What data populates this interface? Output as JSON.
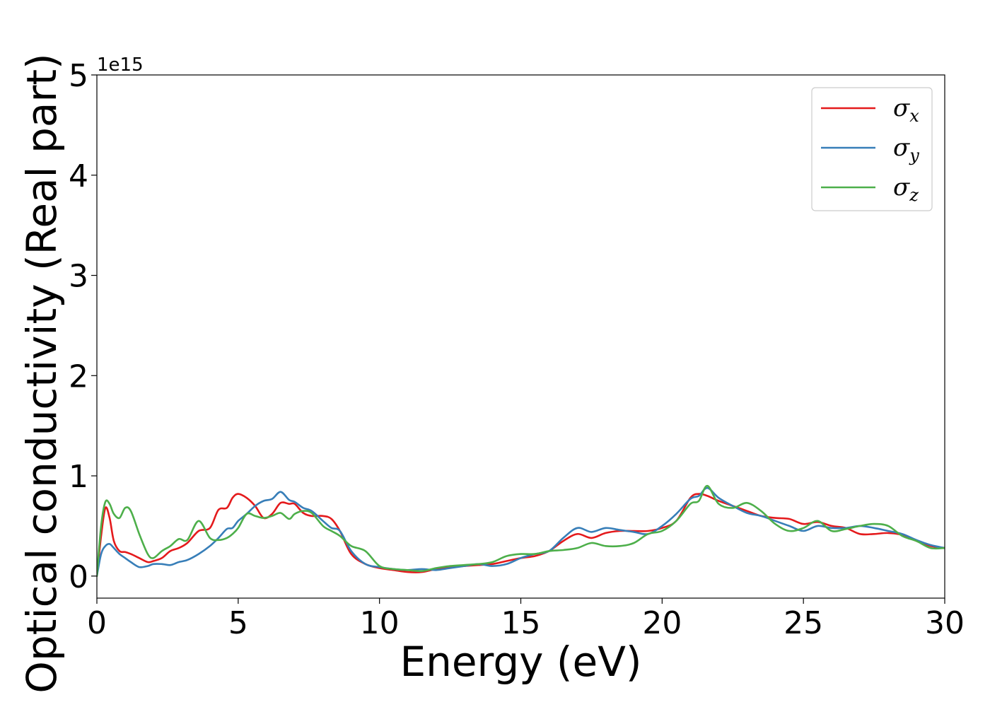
{
  "chart_data": {
    "type": "line",
    "title": "",
    "xlabel": "Energy (eV)",
    "ylabel": "Optical conductivity (Real part)",
    "y_offset_label": "1e15",
    "y_scale_factor": 1000000000000000.0,
    "xlim": [
      0,
      30
    ],
    "ylim": [
      -0.22,
      5.0
    ],
    "x_ticks": [
      0,
      5,
      10,
      15,
      20,
      25,
      30
    ],
    "y_ticks": [
      0,
      1,
      2,
      3,
      4,
      5
    ],
    "grid": false,
    "legend": "top-right",
    "series": [
      {
        "symbol": "σ",
        "subscript": "x",
        "color": "#e41a1c",
        "x": [
          0,
          0.15,
          0.3,
          0.45,
          0.6,
          0.8,
          1.0,
          1.2,
          1.5,
          1.8,
          2.0,
          2.3,
          2.6,
          2.9,
          3.2,
          3.6,
          4.0,
          4.3,
          4.6,
          4.8,
          5.0,
          5.3,
          5.6,
          5.9,
          6.2,
          6.5,
          6.8,
          7.0,
          7.3,
          7.6,
          8.0,
          8.3,
          8.6,
          9.0,
          9.5,
          10.0,
          10.5,
          11.0,
          11.5,
          12.0,
          12.5,
          13.0,
          13.5,
          14.0,
          14.5,
          15.0,
          15.5,
          16.0,
          16.5,
          17.0,
          17.5,
          18.0,
          18.5,
          19.0,
          19.5,
          20.0,
          20.5,
          21.0,
          21.3,
          21.6,
          22.0,
          22.5,
          23.0,
          23.5,
          24.0,
          24.5,
          25.0,
          25.5,
          26.0,
          26.5,
          27.0,
          27.5,
          28.0,
          28.5,
          29.0,
          29.5,
          30.0
        ],
        "y": [
          0.0,
          0.4,
          0.68,
          0.58,
          0.35,
          0.25,
          0.24,
          0.22,
          0.18,
          0.14,
          0.15,
          0.18,
          0.25,
          0.28,
          0.33,
          0.45,
          0.48,
          0.66,
          0.68,
          0.78,
          0.82,
          0.78,
          0.7,
          0.58,
          0.62,
          0.73,
          0.72,
          0.72,
          0.63,
          0.6,
          0.6,
          0.57,
          0.45,
          0.22,
          0.12,
          0.08,
          0.06,
          0.04,
          0.04,
          0.07,
          0.09,
          0.1,
          0.11,
          0.12,
          0.15,
          0.18,
          0.2,
          0.25,
          0.35,
          0.42,
          0.38,
          0.43,
          0.45,
          0.45,
          0.45,
          0.48,
          0.55,
          0.78,
          0.82,
          0.8,
          0.75,
          0.7,
          0.65,
          0.6,
          0.58,
          0.57,
          0.52,
          0.54,
          0.5,
          0.48,
          0.42,
          0.42,
          0.43,
          0.41,
          0.35,
          0.3,
          0.28
        ]
      },
      {
        "symbol": "σ",
        "subscript": "y",
        "color": "#377eb8",
        "x": [
          0,
          0.15,
          0.3,
          0.45,
          0.6,
          0.8,
          1.0,
          1.2,
          1.5,
          1.8,
          2.0,
          2.3,
          2.6,
          2.9,
          3.2,
          3.6,
          4.0,
          4.3,
          4.6,
          4.8,
          5.0,
          5.3,
          5.6,
          5.9,
          6.2,
          6.5,
          6.8,
          7.0,
          7.3,
          7.6,
          8.0,
          8.3,
          8.6,
          9.0,
          9.5,
          10.0,
          10.5,
          11.0,
          11.5,
          12.0,
          12.5,
          13.0,
          13.5,
          14.0,
          14.5,
          15.0,
          15.5,
          16.0,
          16.5,
          17.0,
          17.5,
          18.0,
          18.5,
          19.0,
          19.5,
          20.0,
          20.5,
          21.0,
          21.3,
          21.6,
          22.0,
          22.5,
          23.0,
          23.5,
          24.0,
          24.5,
          25.0,
          25.5,
          26.0,
          26.5,
          27.0,
          27.5,
          28.0,
          28.5,
          29.0,
          29.5,
          30.0
        ],
        "y": [
          0.0,
          0.22,
          0.3,
          0.32,
          0.28,
          0.22,
          0.18,
          0.14,
          0.09,
          0.1,
          0.12,
          0.12,
          0.11,
          0.14,
          0.16,
          0.22,
          0.3,
          0.38,
          0.47,
          0.48,
          0.55,
          0.62,
          0.7,
          0.75,
          0.77,
          0.84,
          0.76,
          0.74,
          0.68,
          0.65,
          0.55,
          0.48,
          0.45,
          0.25,
          0.12,
          0.09,
          0.07,
          0.06,
          0.07,
          0.06,
          0.08,
          0.1,
          0.12,
          0.1,
          0.12,
          0.18,
          0.22,
          0.25,
          0.38,
          0.48,
          0.44,
          0.48,
          0.46,
          0.44,
          0.42,
          0.5,
          0.62,
          0.77,
          0.8,
          0.88,
          0.78,
          0.7,
          0.63,
          0.6,
          0.55,
          0.5,
          0.45,
          0.5,
          0.48,
          0.48,
          0.5,
          0.48,
          0.45,
          0.42,
          0.36,
          0.31,
          0.28
        ]
      },
      {
        "symbol": "σ",
        "subscript": "z",
        "color": "#4daf4a",
        "x": [
          0,
          0.15,
          0.3,
          0.45,
          0.6,
          0.8,
          1.0,
          1.2,
          1.5,
          1.8,
          2.0,
          2.3,
          2.6,
          2.9,
          3.2,
          3.6,
          4.0,
          4.3,
          4.6,
          4.8,
          5.0,
          5.3,
          5.6,
          5.9,
          6.2,
          6.5,
          6.8,
          7.0,
          7.3,
          7.6,
          8.0,
          8.3,
          8.6,
          9.0,
          9.5,
          10.0,
          10.5,
          11.0,
          11.5,
          12.0,
          12.5,
          13.0,
          13.5,
          14.0,
          14.5,
          15.0,
          15.5,
          16.0,
          16.5,
          17.0,
          17.5,
          18.0,
          18.5,
          19.0,
          19.5,
          20.0,
          20.5,
          21.0,
          21.3,
          21.6,
          22.0,
          22.5,
          23.0,
          23.5,
          24.0,
          24.5,
          25.0,
          25.5,
          26.0,
          26.5,
          27.0,
          27.5,
          28.0,
          28.5,
          29.0,
          29.5,
          30.0
        ],
        "y": [
          0.0,
          0.5,
          0.74,
          0.72,
          0.62,
          0.58,
          0.68,
          0.65,
          0.42,
          0.22,
          0.18,
          0.25,
          0.3,
          0.37,
          0.36,
          0.55,
          0.38,
          0.36,
          0.38,
          0.42,
          0.48,
          0.62,
          0.6,
          0.58,
          0.6,
          0.63,
          0.57,
          0.62,
          0.65,
          0.63,
          0.5,
          0.45,
          0.4,
          0.3,
          0.25,
          0.1,
          0.07,
          0.06,
          0.05,
          0.08,
          0.1,
          0.11,
          0.12,
          0.14,
          0.2,
          0.22,
          0.22,
          0.25,
          0.26,
          0.28,
          0.33,
          0.3,
          0.3,
          0.33,
          0.42,
          0.45,
          0.55,
          0.72,
          0.75,
          0.9,
          0.72,
          0.68,
          0.73,
          0.65,
          0.52,
          0.45,
          0.48,
          0.55,
          0.45,
          0.47,
          0.5,
          0.52,
          0.5,
          0.4,
          0.35,
          0.28,
          0.28
        ]
      }
    ]
  }
}
